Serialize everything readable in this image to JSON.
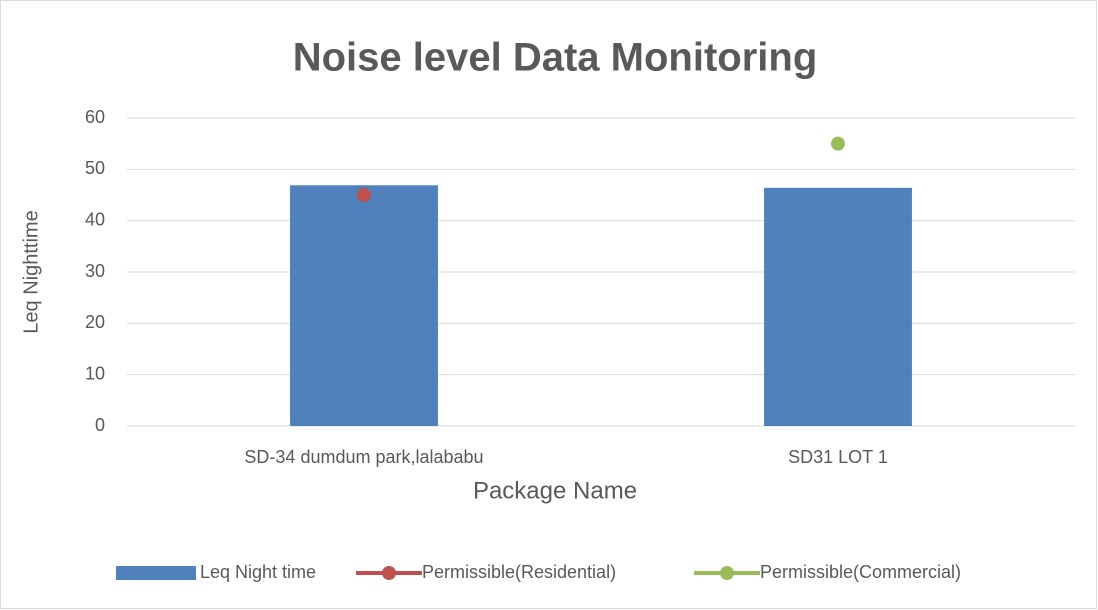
{
  "chart_data": {
    "type": "bar",
    "title": "Noise level Data Monitoring",
    "x_label": "Package Name",
    "y_label": "Leq Nighttime",
    "categories": [
      "SD-34 dumdum park,lalababu",
      "SD31 LOT 1"
    ],
    "series": [
      {
        "name": "Leq Night time",
        "type": "bar",
        "color": "#4f81bd",
        "values": [
          46.9,
          46.4
        ]
      },
      {
        "name": "Permissible(Residential)",
        "type": "marker",
        "color": "#c0504d",
        "values": [
          45,
          null
        ]
      },
      {
        "name": "Permissible(Commercial)",
        "type": "marker",
        "color": "#9bbb59",
        "values": [
          null,
          55
        ]
      }
    ],
    "ylim": [
      0,
      60
    ],
    "yticks": [
      0,
      10,
      20,
      30,
      40,
      50,
      60
    ],
    "grid": true,
    "legend": "bottom"
  }
}
